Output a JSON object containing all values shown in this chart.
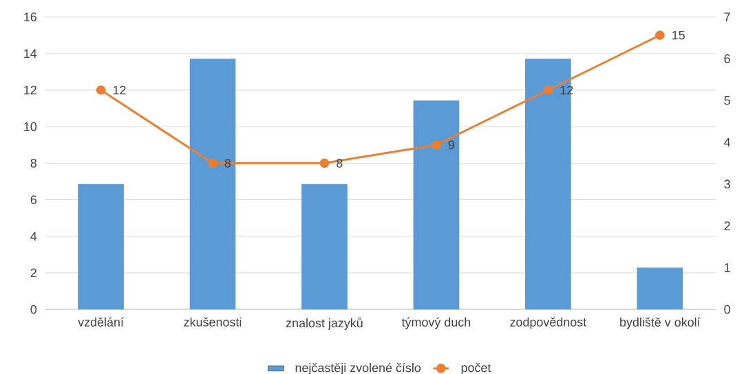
{
  "chart_data": {
    "type": "bar",
    "categories": [
      "vzdělání",
      "zkušenosti",
      "znalost jazyků",
      "týmový duch",
      "zodpovědnost",
      "bydliště v okolí"
    ],
    "series": [
      {
        "name": "nejčastěji zvolené číslo",
        "axis": "y2",
        "color": "#5b9bd5",
        "values": [
          3,
          6,
          3,
          5,
          6,
          1
        ]
      },
      {
        "name": "počet",
        "type": "line",
        "axis": "y",
        "color": "#ed7d31",
        "marker": "circle",
        "values": [
          12,
          8,
          8,
          9,
          12,
          15
        ],
        "value_labels": [
          "12",
          "8",
          "8",
          "9",
          "12",
          "15"
        ]
      }
    ],
    "ylim": [
      0,
      16
    ],
    "yticks": [
      0,
      2,
      4,
      6,
      8,
      10,
      12,
      14,
      16
    ],
    "y2lim": [
      0,
      7
    ],
    "y2ticks": [
      0,
      1,
      2,
      3,
      4,
      5,
      6,
      7
    ],
    "grid": "y",
    "legend": "bottom"
  }
}
